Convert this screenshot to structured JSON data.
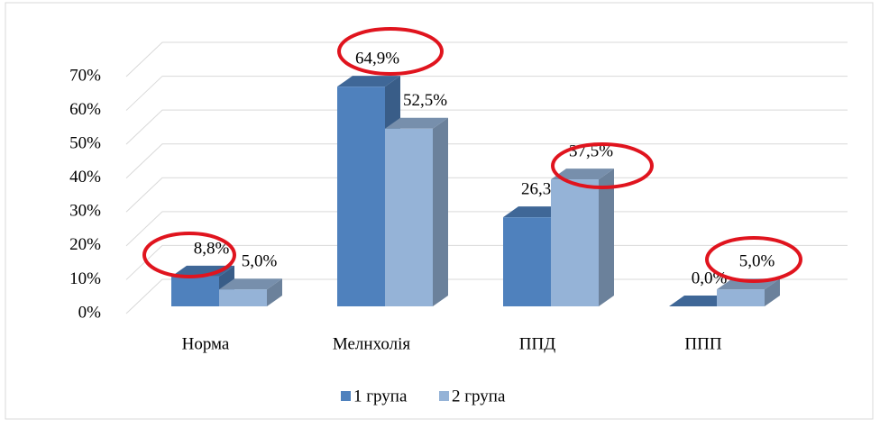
{
  "chart_data": {
    "type": "bar3d",
    "categories": [
      "Норма",
      "Мелнхолія",
      "ППД",
      "ППП"
    ],
    "series": [
      {
        "name": "1 група",
        "color": "#4f81bd",
        "values": [
          8.8,
          64.9,
          26.3,
          0.0
        ],
        "value_labels": [
          "8,8%",
          "64,9%",
          "26,3%",
          "0,0%"
        ]
      },
      {
        "name": "2 група",
        "color": "#95b3d7",
        "values": [
          5.0,
          52.5,
          37.5,
          5.0
        ],
        "value_labels": [
          "5,0%",
          "52,5%",
          "37,5%",
          "5,0%"
        ]
      }
    ],
    "ylim": [
      0,
      70
    ],
    "yticks": [
      {
        "value": 0,
        "label": "0%"
      },
      {
        "value": 10,
        "label": "10%"
      },
      {
        "value": 20,
        "label": "20%"
      },
      {
        "value": 30,
        "label": "30%"
      },
      {
        "value": 40,
        "label": "40%"
      },
      {
        "value": 50,
        "label": "50%"
      },
      {
        "value": 60,
        "label": "60%"
      },
      {
        "value": 70,
        "label": "70%"
      }
    ],
    "grid": true,
    "legend": "bottom"
  }
}
